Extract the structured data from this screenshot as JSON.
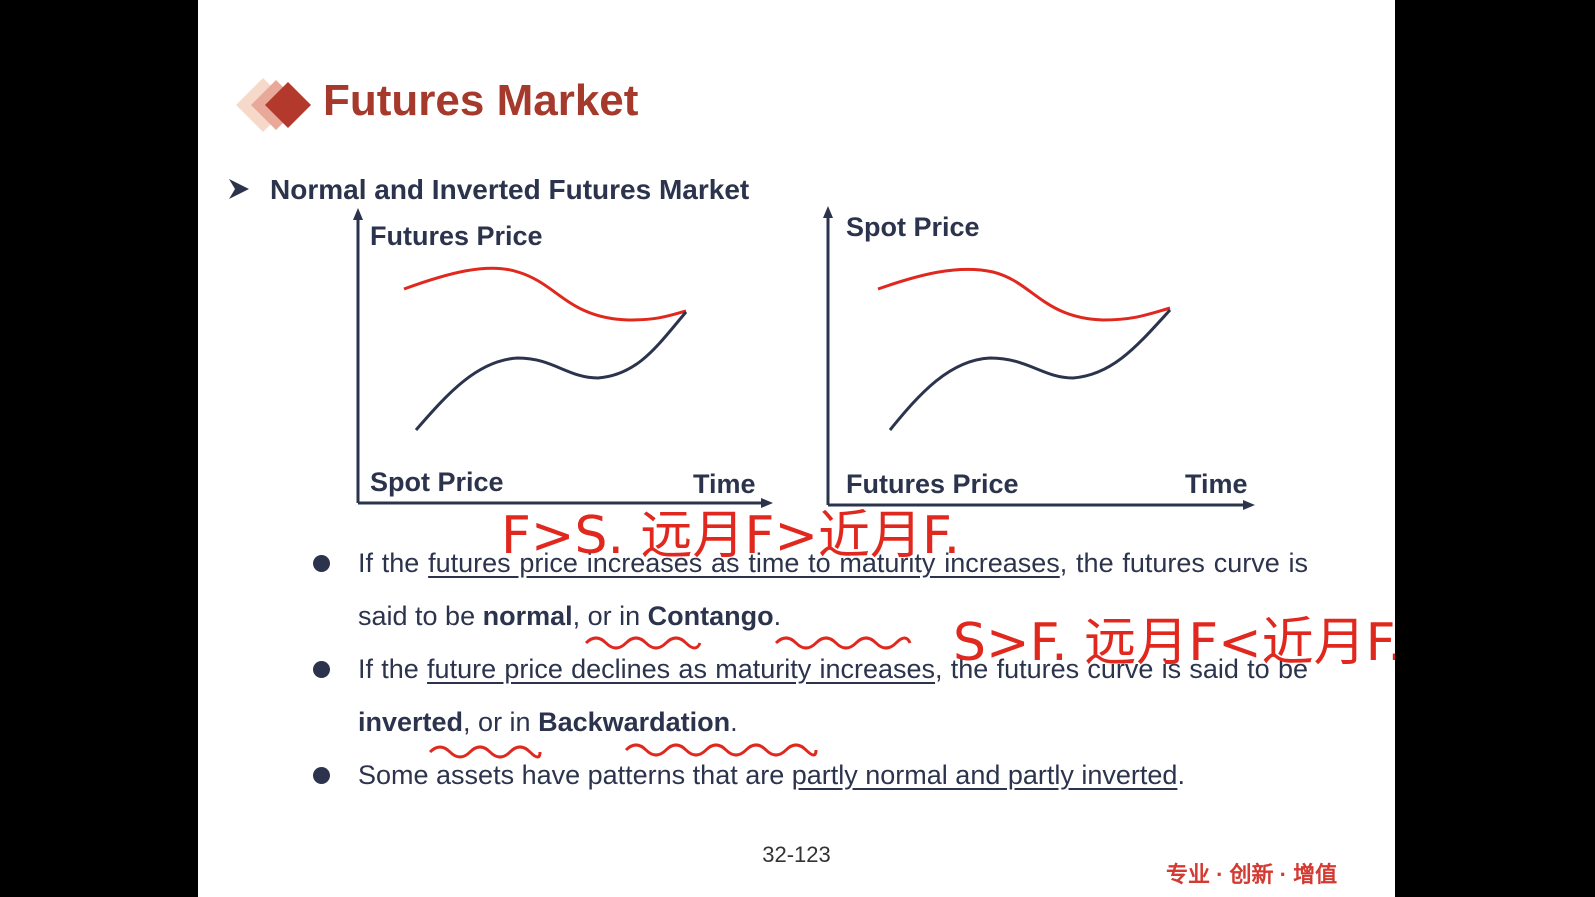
{
  "slide": {
    "title": "Futures Market",
    "subheading": "Normal and Inverted Futures Market",
    "page_number": "32-123",
    "slogan": "专业 · 创新 · 增值"
  },
  "diagrams": {
    "left": {
      "y_label": "Futures Price",
      "curve_label": "Spot Price",
      "x_label": "Time"
    },
    "right": {
      "y_label": "Spot Price",
      "curve_label": "Futures Price",
      "x_label": "Time"
    },
    "colors": {
      "upper_curve": "#e0281e",
      "lower_curve": "#2c344d",
      "axis": "#2c344d"
    }
  },
  "bullets": [
    {
      "p1": "If the ",
      "u1": "futures price increases as time to maturity increases",
      "p2": ", the futures curve is said to be ",
      "b1": "normal",
      "p3": ", or in ",
      "b2": "Contango",
      "p4": "."
    },
    {
      "p1": "If the ",
      "u1": "future price declines as maturity increases",
      "p2": ", the futures curve is said to be ",
      "b1": "inverted",
      "p3": ", or in ",
      "b2": "Backwardation",
      "p4": "."
    },
    {
      "p1": "Some assets have patterns that are ",
      "u1": "partly normal and partly inverted",
      "p2": "."
    }
  ],
  "annotations": {
    "note1": "F>S.  远月F>近月F.",
    "note2": "S>F. 远月F<近月F."
  }
}
